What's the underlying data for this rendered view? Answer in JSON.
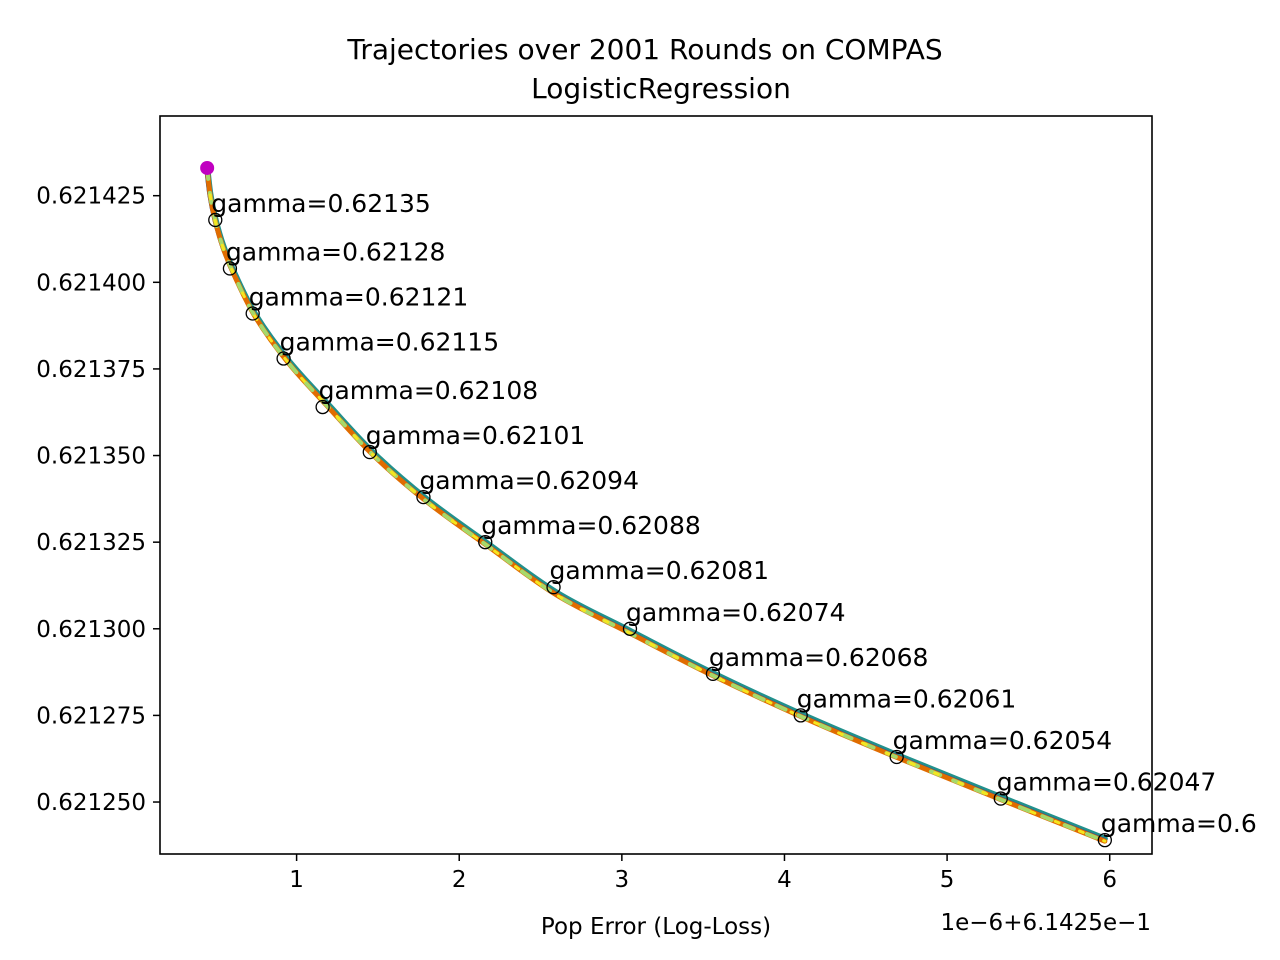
{
  "chart_data": {
    "type": "line",
    "title_line1": "Trajectories over 2001 Rounds on COMPAS",
    "title_line2": "LogisticRegression",
    "xlabel": "Pop Error (Log-Loss)",
    "ylabel": "",
    "x_offset_text": "1e−6+6.1425e−1",
    "x_unit_scale": 1e-06,
    "x_offset": 0.61425,
    "xlim": [
      0.16,
      6.26
    ],
    "ylim": [
      0.621235,
      0.621448
    ],
    "x_ticks": [
      {
        "value": 1,
        "label": "1"
      },
      {
        "value": 2,
        "label": "2"
      },
      {
        "value": 3,
        "label": "3"
      },
      {
        "value": 4,
        "label": "4"
      },
      {
        "value": 5,
        "label": "5"
      },
      {
        "value": 6,
        "label": "6"
      }
    ],
    "y_ticks": [
      {
        "value": 0.62125,
        "label": "0.621250"
      },
      {
        "value": 0.621275,
        "label": "0.621275"
      },
      {
        "value": 0.6213,
        "label": "0.621300"
      },
      {
        "value": 0.621325,
        "label": "0.621325"
      },
      {
        "value": 0.62135,
        "label": "0.621350"
      },
      {
        "value": 0.621375,
        "label": "0.621375"
      },
      {
        "value": 0.6214,
        "label": "0.621400"
      },
      {
        "value": 0.621425,
        "label": "0.621425"
      }
    ],
    "start_point": {
      "x": 0.45,
      "y": 0.621433,
      "color": "#c000c0"
    },
    "series": [
      {
        "x": [
          0.45,
          0.47,
          0.5,
          0.55,
          0.62,
          0.75,
          0.95,
          1.2,
          1.48,
          1.8,
          2.18,
          2.6,
          3.05,
          3.55,
          4.1,
          4.7,
          5.33,
          5.97
        ],
        "y": [
          0.621433,
          0.621425,
          0.621418,
          0.62141,
          0.621402,
          0.62139,
          0.621377,
          0.621364,
          0.62135,
          0.621337,
          0.621324,
          0.62131,
          0.621299,
          0.621287,
          0.621275,
          0.621263,
          0.621251,
          0.621239
        ]
      }
    ],
    "annotations": [
      {
        "label": "gamma=0.62135",
        "x": 0.5,
        "y": 0.621418
      },
      {
        "label": "gamma=0.62128",
        "x": 0.59,
        "y": 0.621404
      },
      {
        "label": "gamma=0.62121",
        "x": 0.73,
        "y": 0.621391
      },
      {
        "label": "gamma=0.62115",
        "x": 0.92,
        "y": 0.621378
      },
      {
        "label": "gamma=0.62108",
        "x": 1.16,
        "y": 0.621364
      },
      {
        "label": "gamma=0.62101",
        "x": 1.45,
        "y": 0.621351
      },
      {
        "label": "gamma=0.62094",
        "x": 1.78,
        "y": 0.621338
      },
      {
        "label": "gamma=0.62088",
        "x": 2.16,
        "y": 0.621325
      },
      {
        "label": "gamma=0.62081",
        "x": 2.58,
        "y": 0.621312
      },
      {
        "label": "gamma=0.62074",
        "x": 3.05,
        "y": 0.6213
      },
      {
        "label": "gamma=0.62068",
        "x": 3.56,
        "y": 0.621287
      },
      {
        "label": "gamma=0.62061",
        "x": 4.1,
        "y": 0.621275
      },
      {
        "label": "gamma=0.62054",
        "x": 4.69,
        "y": 0.621263
      },
      {
        "label": "gamma=0.62047",
        "x": 5.33,
        "y": 0.621251
      },
      {
        "label": "gamma=0.6",
        "x": 5.97,
        "y": 0.621239
      }
    ]
  }
}
